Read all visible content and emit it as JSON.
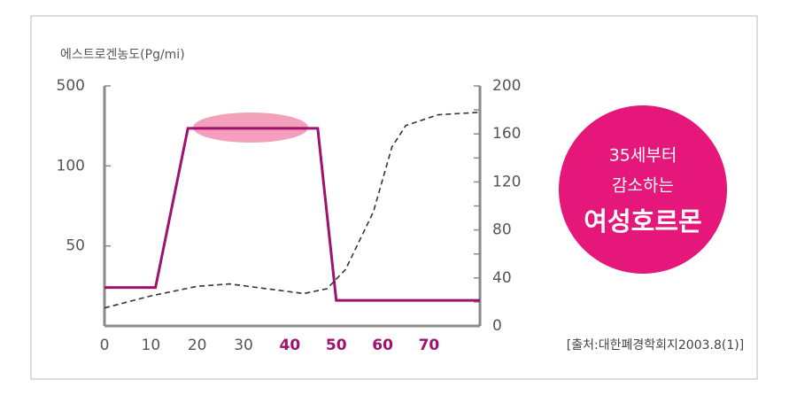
{
  "chart_data": {
    "type": "line",
    "y_label": "에스트로겐농도(Pg/mi)",
    "xlim": [
      0,
      81
    ],
    "xticks": [
      0,
      10,
      20,
      30,
      40,
      50,
      60,
      70
    ],
    "xtick_colors": [
      "#555555",
      "#555555",
      "#555555",
      "#555555",
      "#a0106f",
      "#a0106f",
      "#a0106f",
      "#a0106f"
    ],
    "ylim": [
      0,
      500
    ],
    "yticks": [
      50,
      100,
      500
    ],
    "y_scale": "even-ticks",
    "y2lim": [
      0,
      200
    ],
    "y2ticks": [
      0,
      20,
      40,
      60,
      80,
      100,
      120,
      140,
      160,
      180,
      200
    ],
    "series": [
      {
        "color": "#a0106f",
        "style": "solid",
        "x": [
          0,
          11,
          18,
          46,
          50,
          81
        ],
        "values": [
          24,
          24,
          288,
          288,
          16,
          16
        ]
      },
      {
        "color": "#333333",
        "style": "dashed",
        "axis": "y2",
        "x": [
          0,
          10,
          20,
          27,
          35,
          43,
          48,
          52,
          58,
          62,
          65,
          72,
          81
        ],
        "values": [
          15,
          25,
          33,
          35,
          31,
          27,
          31,
          47,
          95,
          149,
          167,
          176,
          178
        ]
      }
    ],
    "badge": [
      "35세부터",
      "감소하는",
      "여성호르몬"
    ],
    "badge_color": "#e6177a",
    "source": "[출처:대한폐경학회지2003.8(1)]"
  }
}
